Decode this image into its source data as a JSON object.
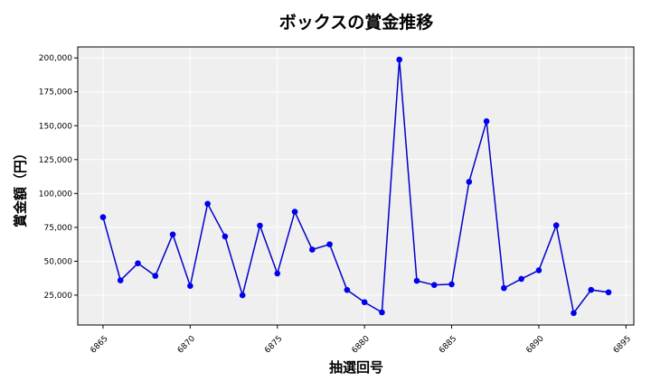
{
  "chart_data": {
    "type": "line",
    "title": "ボックスの賞金推移",
    "xlabel": "抽選回号",
    "ylabel": "賞金額（円）",
    "x": [
      6865,
      6866,
      6867,
      6868,
      6869,
      6870,
      6871,
      6872,
      6873,
      6874,
      6875,
      6876,
      6877,
      6878,
      6879,
      6880,
      6881,
      6882,
      6883,
      6884,
      6885,
      6886,
      6887,
      6888,
      6889,
      6890,
      6891,
      6892,
      6893,
      6894
    ],
    "series": [
      {
        "values": [
          82500,
          35900,
          48500,
          39200,
          69800,
          31800,
          92400,
          68300,
          24900,
          76300,
          41000,
          86500,
          58600,
          62500,
          28800,
          19800,
          12300,
          198800,
          35600,
          32500,
          33000,
          108600,
          153300,
          30200,
          37000,
          43300,
          76500,
          11800,
          28900,
          27100
        ]
      }
    ],
    "xticks": [
      6865,
      6870,
      6875,
      6880,
      6885,
      6890,
      6895
    ],
    "xtick_labels": [
      "6865",
      "6870",
      "6875",
      "6880",
      "6885",
      "6890",
      "6895"
    ],
    "yticks": [
      25000,
      50000,
      75000,
      100000,
      125000,
      150000,
      175000,
      200000
    ],
    "ytick_labels": [
      "25,000",
      "50,000",
      "75,000",
      "100,000",
      "125,000",
      "150,000",
      "175,000",
      "200,000"
    ],
    "xlim": [
      6863.55,
      6895.45
    ],
    "ylim": [
      2970,
      208130
    ],
    "grid": true,
    "colors": {
      "line": "#0000cc",
      "marker": "#0000ee",
      "background": "#efefef",
      "grid": "#ffffff"
    }
  }
}
